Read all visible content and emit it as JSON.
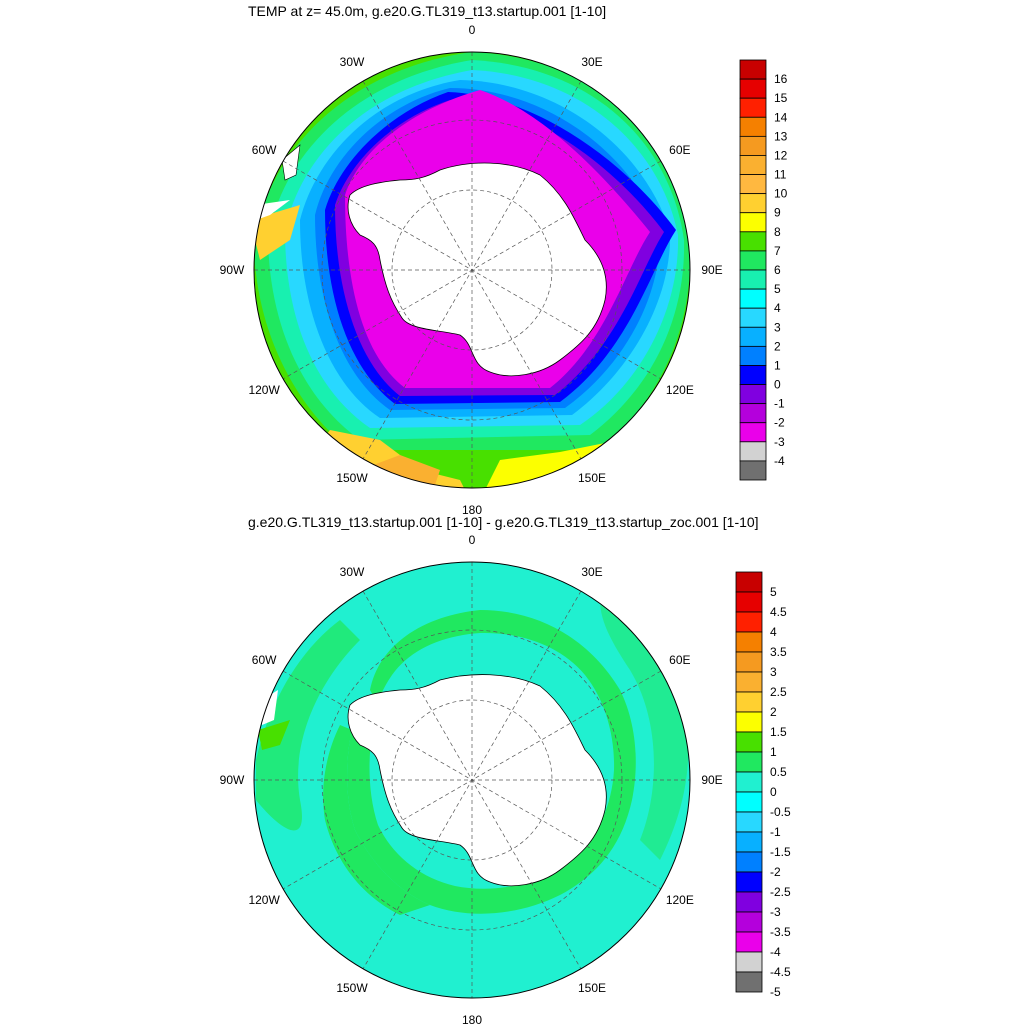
{
  "maps": [
    {
      "title": "TEMP at z=  45.0m, g.e20.G.TL319_t13.startup.001 [1-10]",
      "field": "temperature",
      "depth": "45.0m",
      "longitude_labels": [
        "0",
        "30E",
        "60E",
        "90E",
        "120E",
        "150E",
        "180",
        "150W",
        "120W",
        "90W",
        "60W",
        "30W"
      ],
      "colorbar": {
        "labels": [
          "16",
          "15",
          "14",
          "13",
          "12",
          "11",
          "10",
          "9",
          "8",
          "7",
          "6",
          "5",
          "4",
          "3",
          "2",
          "1",
          "0",
          "-1",
          "-2",
          "-3",
          "-4"
        ],
        "colors": [
          "#c80000",
          "#e60000",
          "#ff2000",
          "#f58000",
          "#f59a20",
          "#fab030",
          "#ffb840",
          "#ffd030",
          "#fcff00",
          "#48e000",
          "#20e860",
          "#18f0b0",
          "#00ffff",
          "#28d8ff",
          "#08b0ff",
          "#0080ff",
          "#0000ff",
          "#8000e0",
          "#b400dc",
          "#ea00ea",
          "#d2d2d2",
          "#707070"
        ]
      }
    },
    {
      "title": "g.e20.G.TL319_t13.startup.001 [1-10] - g.e20.G.TL319_t13.startup_zoc.001 [1-10]",
      "field": "temperature difference",
      "longitude_labels": [
        "0",
        "30E",
        "60E",
        "90E",
        "120E",
        "150E",
        "180",
        "150W",
        "120W",
        "90W",
        "60W",
        "30W"
      ],
      "colorbar": {
        "labels": [
          "5",
          "4.5",
          "4",
          "3.5",
          "3",
          "2.5",
          "2",
          "1.5",
          "1",
          "0.5",
          "0",
          "-0.5",
          "-1",
          "-1.5",
          "-2",
          "-2.5",
          "-3",
          "-3.5",
          "-4",
          "-4.5",
          "-5"
        ],
        "colors": [
          "#c80000",
          "#e60000",
          "#ff2000",
          "#f58000",
          "#f59a20",
          "#fab030",
          "#ffd030",
          "#fcff00",
          "#48e000",
          "#20e860",
          "#20f0d0",
          "#00ffff",
          "#28d8ff",
          "#08b0ff",
          "#0080ff",
          "#0000ff",
          "#8000e0",
          "#b400dc",
          "#ea00ea",
          "#d2d2d2",
          "#707070"
        ]
      }
    }
  ]
}
